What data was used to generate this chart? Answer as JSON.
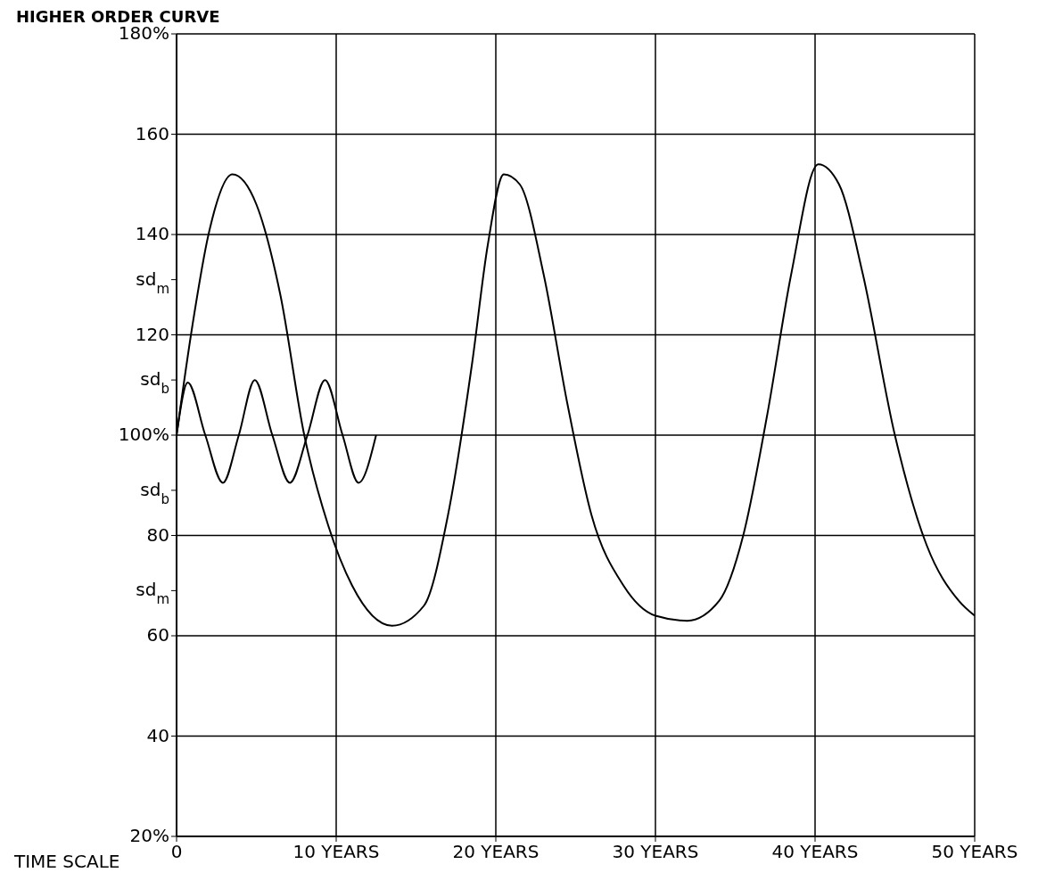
{
  "chart_data": {
    "type": "line",
    "title": "HIGHER ORDER CURVE",
    "xlabel": "TIME SCALE",
    "xlim": [
      0,
      50
    ],
    "xticks": [
      {
        "value": 0,
        "label": "0"
      },
      {
        "value": 10,
        "label": "10 YEARS"
      },
      {
        "value": 20,
        "label": "20 YEARS"
      },
      {
        "value": 30,
        "label": "30 YEARS"
      },
      {
        "value": 40,
        "label": "40 YEARS"
      },
      {
        "value": 50,
        "label": "50 YEARS"
      }
    ],
    "ylim": [
      20,
      180
    ],
    "yticks": [
      {
        "value": 20,
        "label": "20%"
      },
      40,
      60,
      {
        "value": 69,
        "label": "sd$_{m}$"
      },
      80,
      {
        "value": 89,
        "label": "sd$_{b}$"
      },
      {
        "value": 100,
        "label": "100%"
      },
      {
        "value": 111,
        "label": "sd$_{b}$"
      },
      120,
      {
        "value": 131,
        "label": "sd$_{m}$"
      },
      140,
      160,
      {
        "value": 180,
        "label": "180%"
      }
    ],
    "grid": true,
    "marker": "none",
    "line_style": "solid",
    "series": [
      {
        "color": "#000000",
        "x": [
          0,
          1,
          2,
          3.5,
          5,
          6.5,
          8,
          9.5,
          11,
          13.5,
          15.5,
          17,
          18.5,
          19.5,
          20.5,
          21.5,
          23,
          24.5,
          26,
          28,
          30,
          32,
          34,
          35.5,
          37,
          38.5,
          40.2,
          41.5,
          43,
          45,
          47,
          49,
          50
        ],
        "values": [
          100,
          122,
          140,
          152,
          146,
          128,
          100,
          82,
          70,
          62,
          66,
          84,
          114,
          138,
          152,
          150,
          132,
          106,
          84,
          70,
          64,
          63,
          67,
          80,
          104,
          132,
          154,
          150,
          132,
          100,
          78,
          67,
          64
        ]
      },
      {
        "color": "#000000",
        "x": [
          0,
          0.7,
          1.8,
          2.9,
          3.9,
          4.9,
          6,
          7.1,
          8.2,
          9.3,
          10.4,
          11.4,
          12.5
        ],
        "values": [
          100,
          110.5,
          100,
          90.5,
          100,
          111,
          100,
          90.5,
          100,
          111,
          100,
          90.5,
          100
        ]
      }
    ]
  }
}
